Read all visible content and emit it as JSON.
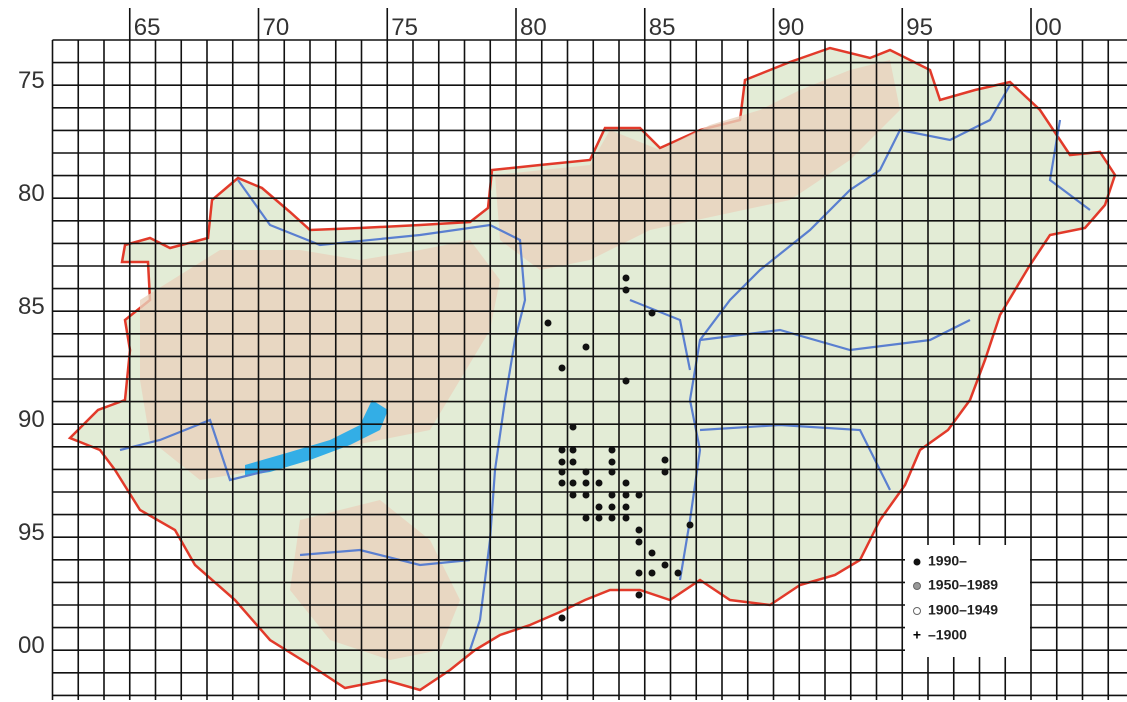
{
  "grid": {
    "column_labels": [
      "65",
      "70",
      "75",
      "80",
      "85",
      "90",
      "95",
      "00"
    ],
    "row_labels": [
      "75",
      "80",
      "85",
      "90",
      "95",
      "00"
    ]
  },
  "legend": {
    "items": [
      "1990–",
      "1950–1989",
      "1900–1949",
      "–1900"
    ]
  }
}
